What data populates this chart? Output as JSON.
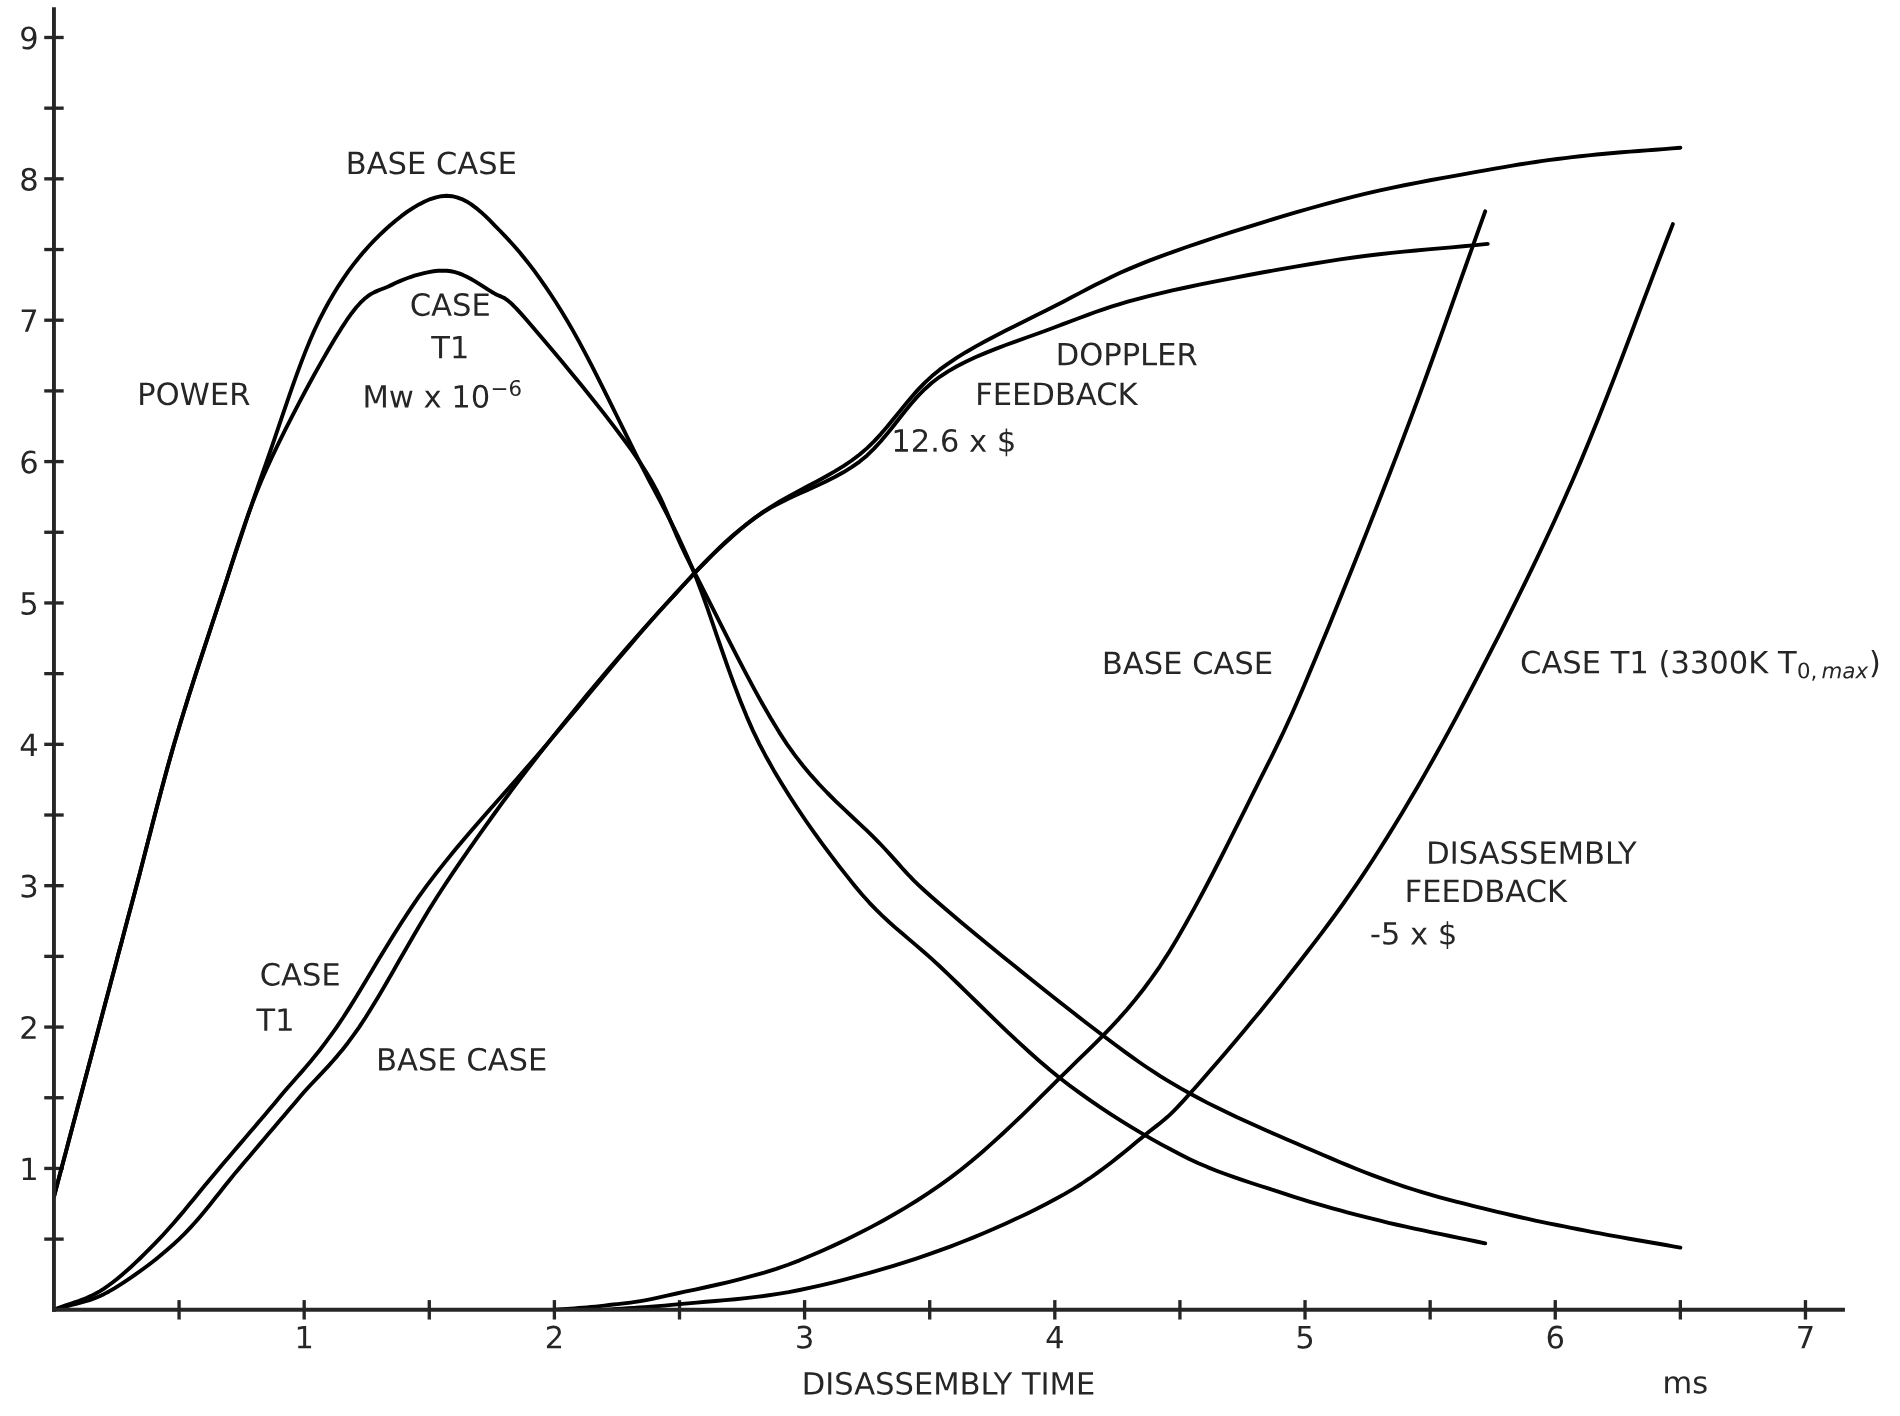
{
  "chart_data": {
    "type": "line",
    "xlabel": "DISASSEMBLY TIME",
    "xlim": [
      0,
      7.15
    ],
    "ylim": [
      0,
      9.2
    ],
    "xticks": [
      {
        "value": 0.5,
        "label": null
      },
      1,
      {
        "value": 1.5,
        "label": null
      },
      2,
      {
        "value": 2.5,
        "label": null
      },
      3,
      {
        "value": 3.5,
        "label": null
      },
      4,
      {
        "value": 4.5,
        "label": null
      },
      5,
      {
        "value": 5.5,
        "label": null
      },
      6,
      {
        "value": 6.5,
        "label": null
      },
      7
    ],
    "yticks": [
      {
        "value": 0.5,
        "label": null
      },
      1,
      {
        "value": 1.5,
        "label": null
      },
      2,
      {
        "value": 2.5,
        "label": null
      },
      3,
      {
        "value": 3.5,
        "label": null
      },
      4,
      {
        "value": 4.5,
        "label": null
      },
      5,
      {
        "value": 5.5,
        "label": null
      },
      6,
      {
        "value": 6.5,
        "label": null
      },
      7,
      {
        "value": 7.5,
        "label": null
      },
      8,
      {
        "value": 8.5,
        "label": null
      },
      9
    ],
    "grid": false,
    "legend": false,
    "marker": "none",
    "line_style": "solid",
    "series": [
      {
        "color": "#000000",
        "x": [
          0,
          0.18,
          0.33,
          0.48,
          0.66,
          0.85,
          1.06,
          1.3,
          1.57,
          1.8,
          2.05,
          2.34,
          2.55,
          2.82,
          3.2,
          3.54,
          4.02,
          4.5,
          4.92,
          5.3,
          5.72
        ],
        "values": [
          0.8,
          2,
          3,
          4,
          5,
          6,
          7,
          7.6,
          7.88,
          7.6,
          7,
          6,
          5.25,
          4,
          3.0,
          2.43,
          1.64,
          1.1,
          0.82,
          0.63,
          0.47
        ]
      },
      {
        "color": "#000000",
        "x": [
          0,
          0.18,
          0.33,
          0.48,
          0.66,
          0.85,
          1.17,
          1.35,
          1.57,
          1.75,
          1.89,
          2.34,
          2.55,
          2.93,
          3.3,
          3.54,
          4.17,
          4.54,
          5.0,
          5.4,
          5.8,
          6.15,
          6.5
        ],
        "values": [
          0.8,
          2,
          3,
          4,
          5,
          5.95,
          7,
          7.25,
          7.35,
          7.2,
          7,
          6,
          5.25,
          4,
          3.3,
          2.87,
          1.97,
          1.53,
          1.15,
          0.87,
          0.68,
          0.55,
          0.44
        ]
      },
      {
        "color": "#000000",
        "x": [
          0,
          0.2,
          0.42,
          0.66,
          0.9,
          1.13,
          1.49,
          1.97,
          2.45,
          2.8,
          3.22,
          3.54,
          4.0,
          4.42,
          5.14,
          5.72,
          6.1,
          6.5
        ],
        "values": [
          0,
          0.15,
          0.5,
          1,
          1.5,
          2,
          3,
          4,
          5,
          5.6,
          6.05,
          6.65,
          7.1,
          7.45,
          7.85,
          8.06,
          8.16,
          8.22
        ]
      },
      {
        "color": "#000000",
        "x": [
          0,
          0.22,
          0.5,
          0.74,
          0.98,
          1.22,
          1.56,
          1.97,
          2.45,
          2.8,
          3.22,
          3.54,
          4.0,
          4.42,
          5.14,
          5.73
        ],
        "values": [
          0,
          0.13,
          0.5,
          1,
          1.5,
          2,
          3,
          4,
          5,
          5.6,
          6.0,
          6.6,
          6.95,
          7.19,
          7.43,
          7.54
        ]
      },
      {
        "color": "#000000",
        "x": [
          2.0,
          2.2,
          2.45,
          2.98,
          3.54,
          4.02,
          4.42,
          4.82,
          5.04,
          5.4,
          5.72
        ],
        "values": [
          0,
          0.03,
          0.1,
          0.35,
          0.88,
          1.64,
          2.43,
          3.75,
          4.6,
          6.2,
          7.77
        ]
      },
      {
        "color": "#000000",
        "x": [
          2.2,
          2.5,
          2.98,
          3.54,
          4.04,
          4.37,
          4.54,
          4.92,
          5.27,
          5.64,
          6.07,
          6.47
        ],
        "values": [
          0,
          0.04,
          0.14,
          0.42,
          0.82,
          1.25,
          1.53,
          2.33,
          3.18,
          4.31,
          5.87,
          7.68
        ]
      }
    ],
    "annotations": [
      "BASE CASE",
      "CASE",
      "T1",
      "Mw x 10$^{−6}$",
      "POWER",
      "DOPPLER",
      "FEEDBACK",
      "12.6 x $",
      "BASE CASE",
      "CASE T1 (3300K T$_{0,max}$)",
      "DISASSEMBLY",
      "FEEDBACK",
      "-5 x $",
      "CASE",
      "T1",
      "BASE CASE",
      "ms"
    ]
  }
}
